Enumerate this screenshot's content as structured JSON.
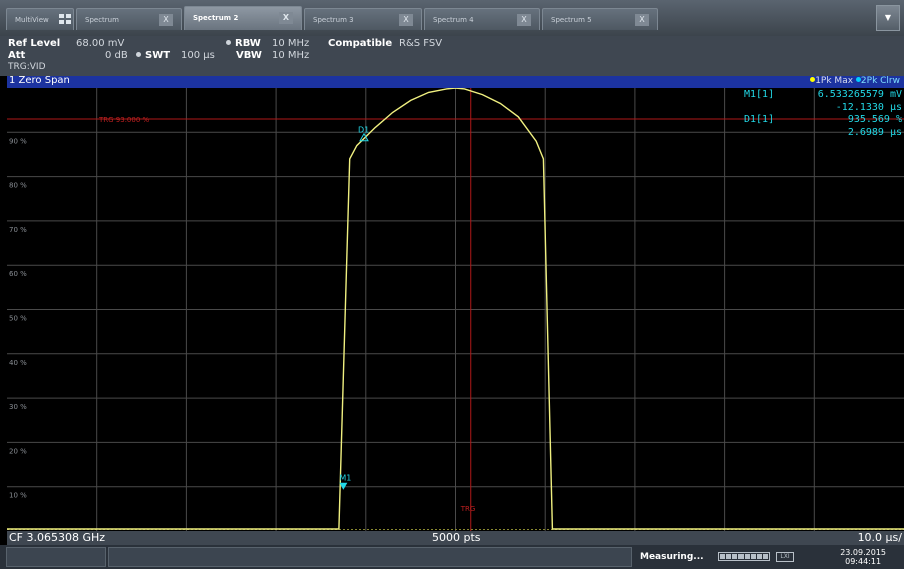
{
  "tabs": [
    {
      "label": "MultiView",
      "active": false
    },
    {
      "label": "Spectrum",
      "active": false,
      "close": "X"
    },
    {
      "label": "Spectrum 2",
      "active": true,
      "close": "X"
    },
    {
      "label": "Spectrum 3",
      "active": false,
      "close": "X"
    },
    {
      "label": "Spectrum 4",
      "active": false,
      "close": "X"
    },
    {
      "label": "Spectrum 5",
      "active": false,
      "close": "X"
    }
  ],
  "tab_menu_icon": "chevron-down-icon",
  "settings": {
    "ref_level_label": "Ref Level",
    "ref_level_value": "68.00 mV",
    "att_label": "Att",
    "att_value": "0 dB",
    "swt_label": "SWT",
    "swt_value": "100 µs",
    "rbw_label": "RBW",
    "rbw_value": "10 MHz",
    "vbw_label": "VBW",
    "vbw_value": "10 MHz",
    "compatible_label": "Compatible",
    "compatible_value": "R&S FSV",
    "trigger": "TRG:VID"
  },
  "window": {
    "title": "1 Zero Span",
    "trace1": "1Pk Max",
    "trace2": "2Pk Clrw",
    "trace1_color": "#ffff00",
    "trace2_color": "#00ccff"
  },
  "markers": [
    {
      "name": "M1[1]",
      "value": "6.533265579 mV",
      "sub": "-12.1330 µs"
    },
    {
      "name": "D1[1]",
      "value": "935.569 %",
      "sub": "2.6989 µs"
    }
  ],
  "chart_data": {
    "type": "line",
    "y_tick_labels": [
      "90 %",
      "80 %",
      "70 %",
      "60 %",
      "50 %",
      "40 %",
      "30 %",
      "20 %",
      "10 %"
    ],
    "trigger_line_label": "TRG 93.000 %",
    "trigger_level_pct": 93,
    "trigger_time_label": "TRG",
    "grid": true,
    "series": [
      {
        "color": "#f0f080",
        "x": [
          0,
          0.37,
          0.382,
          0.39,
          0.41,
          0.43,
          0.45,
          0.47,
          0.49,
          0.5,
          0.51,
          0.53,
          0.55,
          0.57,
          0.59,
          0.598,
          0.608,
          1
        ],
        "y": [
          0,
          0,
          84,
          87,
          91,
          94.5,
          97.2,
          99,
          99.8,
          100,
          99.8,
          98.5,
          96.5,
          93.5,
          88,
          84,
          0,
          0
        ]
      }
    ],
    "markers": [
      {
        "label": "M1",
        "x": 0.375,
        "y": 10
      },
      {
        "label": "D1",
        "x": 0.398,
        "y": 89
      }
    ],
    "trigger_x": 0.517
  },
  "footer": {
    "center_freq": "CF 3.065308 GHz",
    "points": "5000 pts",
    "div": "10.0 µs/"
  },
  "status": {
    "measuring": "Measuring...",
    "lxi": "LXI",
    "date": "23.09.2015",
    "time": "09:44:11"
  }
}
